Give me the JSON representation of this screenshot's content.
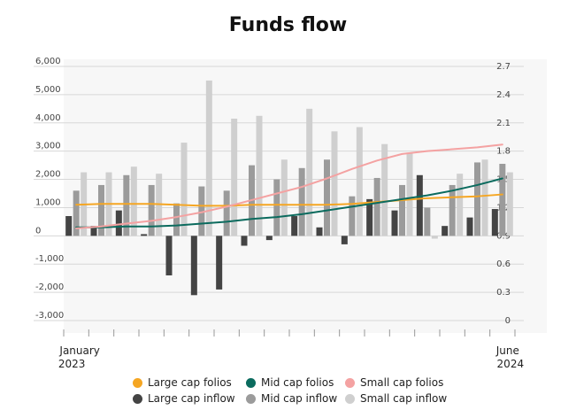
{
  "title": "Funds flow",
  "chart_data": {
    "type": "bar",
    "title": "Funds flow",
    "x_labels": [
      {
        "month": "January",
        "year": "2023"
      },
      {
        "month": "June",
        "year": "2024"
      }
    ],
    "y_left": {
      "min": -3000,
      "max": 6000,
      "ticks": [
        "6,000",
        "5,000",
        "4,000",
        "3,000",
        "2,000",
        "1,000",
        "0",
        "-1,000",
        "-2,000",
        "-3,000"
      ]
    },
    "y_right": {
      "min": 0,
      "max": 2.7,
      "ticks": [
        "2.7",
        "2.4",
        "2.1",
        "1.8",
        "1.5",
        "1.2",
        "0.9",
        "0.6",
        "0.3",
        "0"
      ]
    },
    "grid": true,
    "legend_position": "bottom",
    "bar_series": [
      {
        "name": "Large cap inflow",
        "color": "#444444",
        "values": [
          700,
          350,
          900,
          60,
          -1400,
          -2100,
          -1900,
          -350,
          -150,
          700,
          300,
          -300,
          1300,
          900,
          2150,
          350,
          650,
          950
        ]
      },
      {
        "name": "Mid cap inflow",
        "color": "#9b9b9b",
        "values": [
          1600,
          1800,
          2150,
          1800,
          1150,
          1750,
          1600,
          2500,
          2000,
          2400,
          2700,
          1400,
          2050,
          1800,
          1000,
          1800,
          2600,
          2550
        ]
      },
      {
        "name": "Small cap inflow",
        "color": "#cfcfcf",
        "values": [
          2250,
          2250,
          2450,
          2200,
          3300,
          5500,
          4150,
          4250,
          2700,
          4500,
          3700,
          3850,
          3250,
          2950,
          -100,
          2200,
          2700,
          2250
        ]
      }
    ],
    "line_series": [
      {
        "name": "Large cap folios",
        "color": "#f5a623",
        "values": [
          1.23,
          1.24,
          1.24,
          1.24,
          1.23,
          1.22,
          1.22,
          1.23,
          1.23,
          1.23,
          1.23,
          1.24,
          1.26,
          1.28,
          1.3,
          1.31,
          1.32,
          1.34
        ]
      },
      {
        "name": "Mid cap folios",
        "color": "#0b6b5e",
        "values": [
          0.99,
          0.99,
          1.0,
          1.0,
          1.01,
          1.03,
          1.05,
          1.08,
          1.1,
          1.13,
          1.17,
          1.21,
          1.25,
          1.29,
          1.33,
          1.38,
          1.44,
          1.51
        ]
      },
      {
        "name": "Small cap folios",
        "color": "#f4a2a2",
        "values": [
          0.98,
          1.0,
          1.03,
          1.06,
          1.1,
          1.15,
          1.21,
          1.28,
          1.35,
          1.42,
          1.51,
          1.61,
          1.7,
          1.77,
          1.8,
          1.82,
          1.84,
          1.87
        ]
      }
    ]
  },
  "legend": [
    {
      "label": "Large cap folios",
      "color": "#f5a623"
    },
    {
      "label": "Mid cap folios",
      "color": "#0b6b5e"
    },
    {
      "label": "Small cap folios",
      "color": "#f4a2a2"
    },
    {
      "label": "Large cap inflow",
      "color": "#444444"
    },
    {
      "label": "Mid cap inflow",
      "color": "#9b9b9b"
    },
    {
      "label": "Small cap inflow",
      "color": "#cfcfcf"
    }
  ]
}
